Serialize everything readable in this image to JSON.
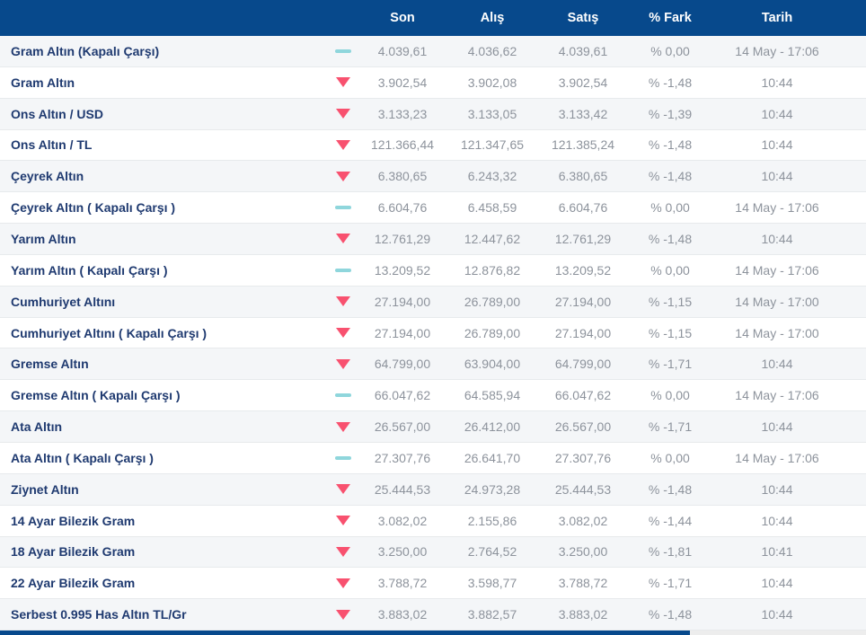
{
  "colors": {
    "header_bg": "#07498c",
    "label_text": "#1f3a70",
    "value_text": "#8d939c",
    "row_alt_bg": "#f4f6f8",
    "trend_down": "#f8516f",
    "trend_flat": "#8fd6dc"
  },
  "table": {
    "columns": [
      "Son",
      "Alış",
      "Satış",
      "% Fark",
      "Tarih"
    ],
    "rows": [
      {
        "label": "Gram Altın (Kapalı Çarşı)",
        "trend": "flat",
        "son": "4.039,61",
        "alis": "4.036,62",
        "satis": "4.039,61",
        "fark": "% 0,00",
        "tarih": "14 May - 17:06"
      },
      {
        "label": "Gram Altın",
        "trend": "down",
        "son": "3.902,54",
        "alis": "3.902,08",
        "satis": "3.902,54",
        "fark": "% -1,48",
        "tarih": "10:44"
      },
      {
        "label": "Ons Altın / USD",
        "trend": "down",
        "son": "3.133,23",
        "alis": "3.133,05",
        "satis": "3.133,42",
        "fark": "% -1,39",
        "tarih": "10:44"
      },
      {
        "label": "Ons Altın / TL",
        "trend": "down",
        "son": "121.366,44",
        "alis": "121.347,65",
        "satis": "121.385,24",
        "fark": "% -1,48",
        "tarih": "10:44"
      },
      {
        "label": "Çeyrek Altın",
        "trend": "down",
        "son": "6.380,65",
        "alis": "6.243,32",
        "satis": "6.380,65",
        "fark": "% -1,48",
        "tarih": "10:44"
      },
      {
        "label": "Çeyrek Altın ( Kapalı Çarşı )",
        "trend": "flat",
        "son": "6.604,76",
        "alis": "6.458,59",
        "satis": "6.604,76",
        "fark": "% 0,00",
        "tarih": "14 May - 17:06"
      },
      {
        "label": "Yarım Altın",
        "trend": "down",
        "son": "12.761,29",
        "alis": "12.447,62",
        "satis": "12.761,29",
        "fark": "% -1,48",
        "tarih": "10:44"
      },
      {
        "label": "Yarım Altın ( Kapalı Çarşı )",
        "trend": "flat",
        "son": "13.209,52",
        "alis": "12.876,82",
        "satis": "13.209,52",
        "fark": "% 0,00",
        "tarih": "14 May - 17:06"
      },
      {
        "label": "Cumhuriyet Altını",
        "trend": "down",
        "son": "27.194,00",
        "alis": "26.789,00",
        "satis": "27.194,00",
        "fark": "% -1,15",
        "tarih": "14 May - 17:00"
      },
      {
        "label": "Cumhuriyet Altını ( Kapalı Çarşı )",
        "trend": "down",
        "son": "27.194,00",
        "alis": "26.789,00",
        "satis": "27.194,00",
        "fark": "% -1,15",
        "tarih": "14 May - 17:00"
      },
      {
        "label": "Gremse Altın",
        "trend": "down",
        "son": "64.799,00",
        "alis": "63.904,00",
        "satis": "64.799,00",
        "fark": "% -1,71",
        "tarih": "10:44"
      },
      {
        "label": "Gremse Altın ( Kapalı Çarşı )",
        "trend": "flat",
        "son": "66.047,62",
        "alis": "64.585,94",
        "satis": "66.047,62",
        "fark": "% 0,00",
        "tarih": "14 May - 17:06"
      },
      {
        "label": "Ata Altın",
        "trend": "down",
        "son": "26.567,00",
        "alis": "26.412,00",
        "satis": "26.567,00",
        "fark": "% -1,71",
        "tarih": "10:44"
      },
      {
        "label": "Ata Altın ( Kapalı Çarşı )",
        "trend": "flat",
        "son": "27.307,76",
        "alis": "26.641,70",
        "satis": "27.307,76",
        "fark": "% 0,00",
        "tarih": "14 May - 17:06"
      },
      {
        "label": "Ziynet Altın",
        "trend": "down",
        "son": "25.444,53",
        "alis": "24.973,28",
        "satis": "25.444,53",
        "fark": "% -1,48",
        "tarih": "10:44"
      },
      {
        "label": "14 Ayar Bilezik Gram",
        "trend": "down",
        "son": "3.082,02",
        "alis": "2.155,86",
        "satis": "3.082,02",
        "fark": "% -1,44",
        "tarih": "10:44"
      },
      {
        "label": "18 Ayar Bilezik Gram",
        "trend": "down",
        "son": "3.250,00",
        "alis": "2.764,52",
        "satis": "3.250,00",
        "fark": "% -1,81",
        "tarih": "10:41"
      },
      {
        "label": "22 Ayar Bilezik Gram",
        "trend": "down",
        "son": "3.788,72",
        "alis": "3.598,77",
        "satis": "3.788,72",
        "fark": "% -1,71",
        "tarih": "10:44"
      },
      {
        "label": "Serbest 0.995 Has Altın TL/Gr",
        "trend": "down",
        "son": "3.883,02",
        "alis": "3.882,57",
        "satis": "3.883,02",
        "fark": "% -1,48",
        "tarih": "10:44"
      }
    ]
  }
}
